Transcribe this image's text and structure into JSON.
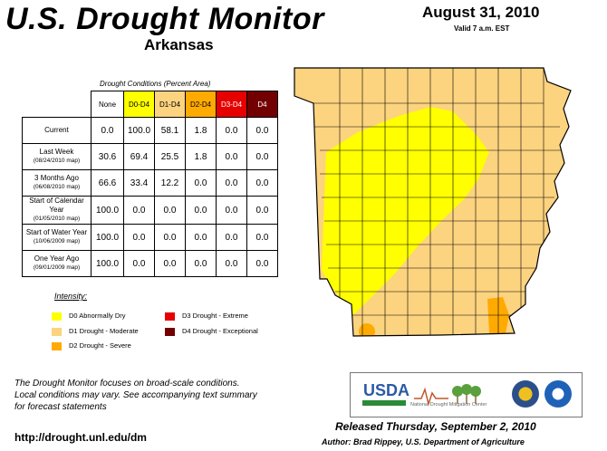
{
  "header": {
    "title": "U.S. Drought Monitor",
    "state": "Arkansas",
    "date": "August 31, 2010",
    "valid": "Valid 7 a.m. EST"
  },
  "table": {
    "caption": "Drought Conditions (Percent Area)",
    "columns": [
      "None",
      "D0-D4",
      "D1-D4",
      "D2-D4",
      "D3-D4",
      "D4"
    ],
    "rows": [
      {
        "label": "Current",
        "sub": "",
        "values": [
          "0.0",
          "100.0",
          "58.1",
          "1.8",
          "0.0",
          "0.0"
        ]
      },
      {
        "label": "Last Week",
        "sub": "(08/24/2010 map)",
        "values": [
          "30.6",
          "69.4",
          "25.5",
          "1.8",
          "0.0",
          "0.0"
        ]
      },
      {
        "label": "3 Months Ago",
        "sub": "(06/08/2010 map)",
        "values": [
          "66.6",
          "33.4",
          "12.2",
          "0.0",
          "0.0",
          "0.0"
        ]
      },
      {
        "label": "Start of Calendar Year",
        "sub": "(01/05/2010 map)",
        "values": [
          "100.0",
          "0.0",
          "0.0",
          "0.0",
          "0.0",
          "0.0"
        ]
      },
      {
        "label": "Start of Water Year",
        "sub": "(10/06/2009 map)",
        "values": [
          "100.0",
          "0.0",
          "0.0",
          "0.0",
          "0.0",
          "0.0"
        ]
      },
      {
        "label": "One Year Ago",
        "sub": "(09/01/2009 map)",
        "values": [
          "100.0",
          "0.0",
          "0.0",
          "0.0",
          "0.0",
          "0.0"
        ]
      }
    ]
  },
  "legend": {
    "title": "Intensity:",
    "items": [
      {
        "label": "D0 Abnormally Dry",
        "color": "#ffff00"
      },
      {
        "label": "D1 Drought - Moderate",
        "color": "#fcd37f"
      },
      {
        "label": "D2 Drought - Severe",
        "color": "#ffaa00"
      },
      {
        "label": "D3 Drought - Extreme",
        "color": "#e60000"
      },
      {
        "label": "D4 Drought - Exceptional",
        "color": "#730000"
      }
    ]
  },
  "footer": {
    "notice_1": "The Drought Monitor focuses on broad-scale conditions.",
    "notice_2": "Local conditions may vary. See accompanying text summary",
    "notice_3": "for forecast statements",
    "url": "http://drought.unl.edu/dm",
    "released": "Released Thursday, September 2, 2010",
    "author": "Author: Brad Rippey, U.S. Department of Agriculture"
  },
  "logos": {
    "usda": "USDA",
    "ndmc": "National Drought Mitigation Center"
  },
  "map": {
    "colors": {
      "d0": "#ffff00",
      "d1": "#fcd37f",
      "d2": "#ffaa00",
      "border": "#000000"
    }
  }
}
